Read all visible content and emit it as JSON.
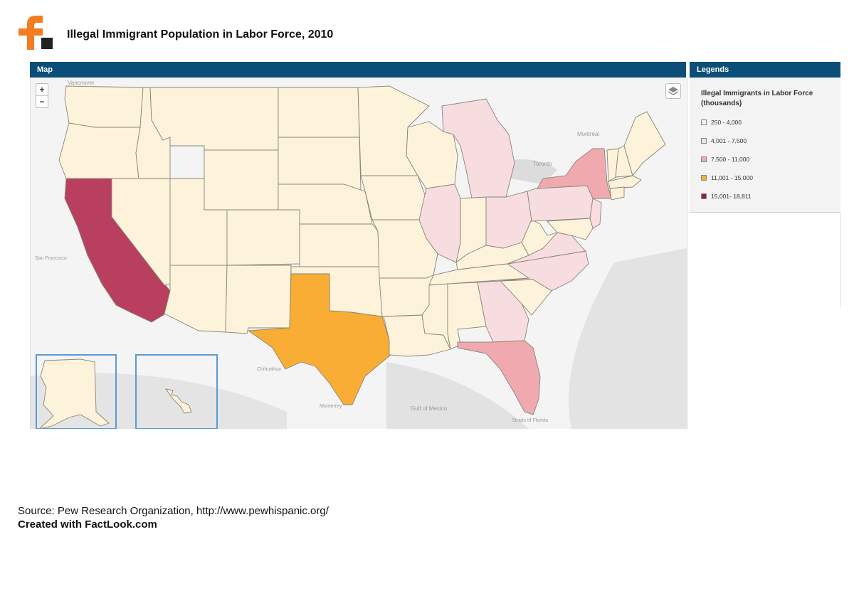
{
  "header": {
    "title": "Illegal Immigrant Population in Labor Force, 2010"
  },
  "logo": {
    "icon": "factlook-logo",
    "color": "#f47b20"
  },
  "map_panel": {
    "title": "Map",
    "zoom_in_label": "+",
    "zoom_out_label": "−",
    "layers_icon": "layers-icon"
  },
  "legend_panel": {
    "title": "Legends",
    "legend_title": "Illegal Immigrants in Labor Force (thousands)",
    "items": [
      {
        "label": "250 - 4,000",
        "color": "#fdf3da"
      },
      {
        "label": "4,001 - 7,500",
        "color": "#f7dde0"
      },
      {
        "label": "7,500 - 11,000",
        "color": "#f1a9b0"
      },
      {
        "label": "11,001 - 15,000",
        "color": "#f9ad34"
      },
      {
        "label": "15,001- 18,811",
        "color": "#9c1a3c"
      }
    ]
  },
  "map_labels": {
    "vancouver": "Vancouver",
    "montreal": "Montréal",
    "toronto": "Toronto",
    "san_francisco": "San Francisco",
    "gulf_of_mexico": "Gulf of Mexico",
    "chihuahua": "Chihuahua",
    "monterrey": "Monterrey",
    "straits_of_florida": "Straits of Florida"
  },
  "footer": {
    "source": "Source: Pew Research Organization, http://www.pewhispanic.org/",
    "created": "Created with FactLook.com"
  }
}
